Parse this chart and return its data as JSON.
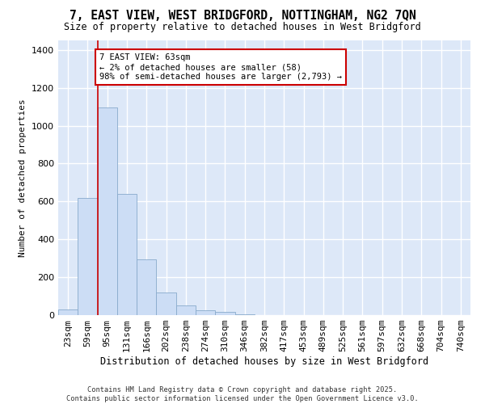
{
  "title_line1": "7, EAST VIEW, WEST BRIDGFORD, NOTTINGHAM, NG2 7QN",
  "title_line2": "Size of property relative to detached houses in West Bridgford",
  "xlabel": "Distribution of detached houses by size in West Bridgford",
  "ylabel": "Number of detached properties",
  "categories": [
    "23sqm",
    "59sqm",
    "95sqm",
    "131sqm",
    "166sqm",
    "202sqm",
    "238sqm",
    "274sqm",
    "310sqm",
    "346sqm",
    "382sqm",
    "417sqm",
    "453sqm",
    "489sqm",
    "525sqm",
    "561sqm",
    "597sqm",
    "632sqm",
    "668sqm",
    "704sqm",
    "740sqm"
  ],
  "values": [
    30,
    620,
    1095,
    640,
    295,
    120,
    50,
    25,
    18,
    5,
    0,
    0,
    0,
    0,
    0,
    0,
    0,
    0,
    0,
    0,
    0
  ],
  "bar_color": "#ccddf5",
  "bar_edge_color": "#88aacc",
  "vline_x": 1.5,
  "vline_color": "#cc0000",
  "annotation_text": "7 EAST VIEW: 63sqm\n← 2% of detached houses are smaller (58)\n98% of semi-detached houses are larger (2,793) →",
  "annotation_box_facecolor": "#ffffff",
  "annotation_box_edgecolor": "#cc0000",
  "plot_bg_color": "#dde8f8",
  "fig_bg_color": "#ffffff",
  "grid_color": "#ffffff",
  "ylim": [
    0,
    1450
  ],
  "yticks": [
    0,
    200,
    400,
    600,
    800,
    1000,
    1200,
    1400
  ],
  "footer_line1": "Contains HM Land Registry data © Crown copyright and database right 2025.",
  "footer_line2": "Contains public sector information licensed under the Open Government Licence v3.0."
}
